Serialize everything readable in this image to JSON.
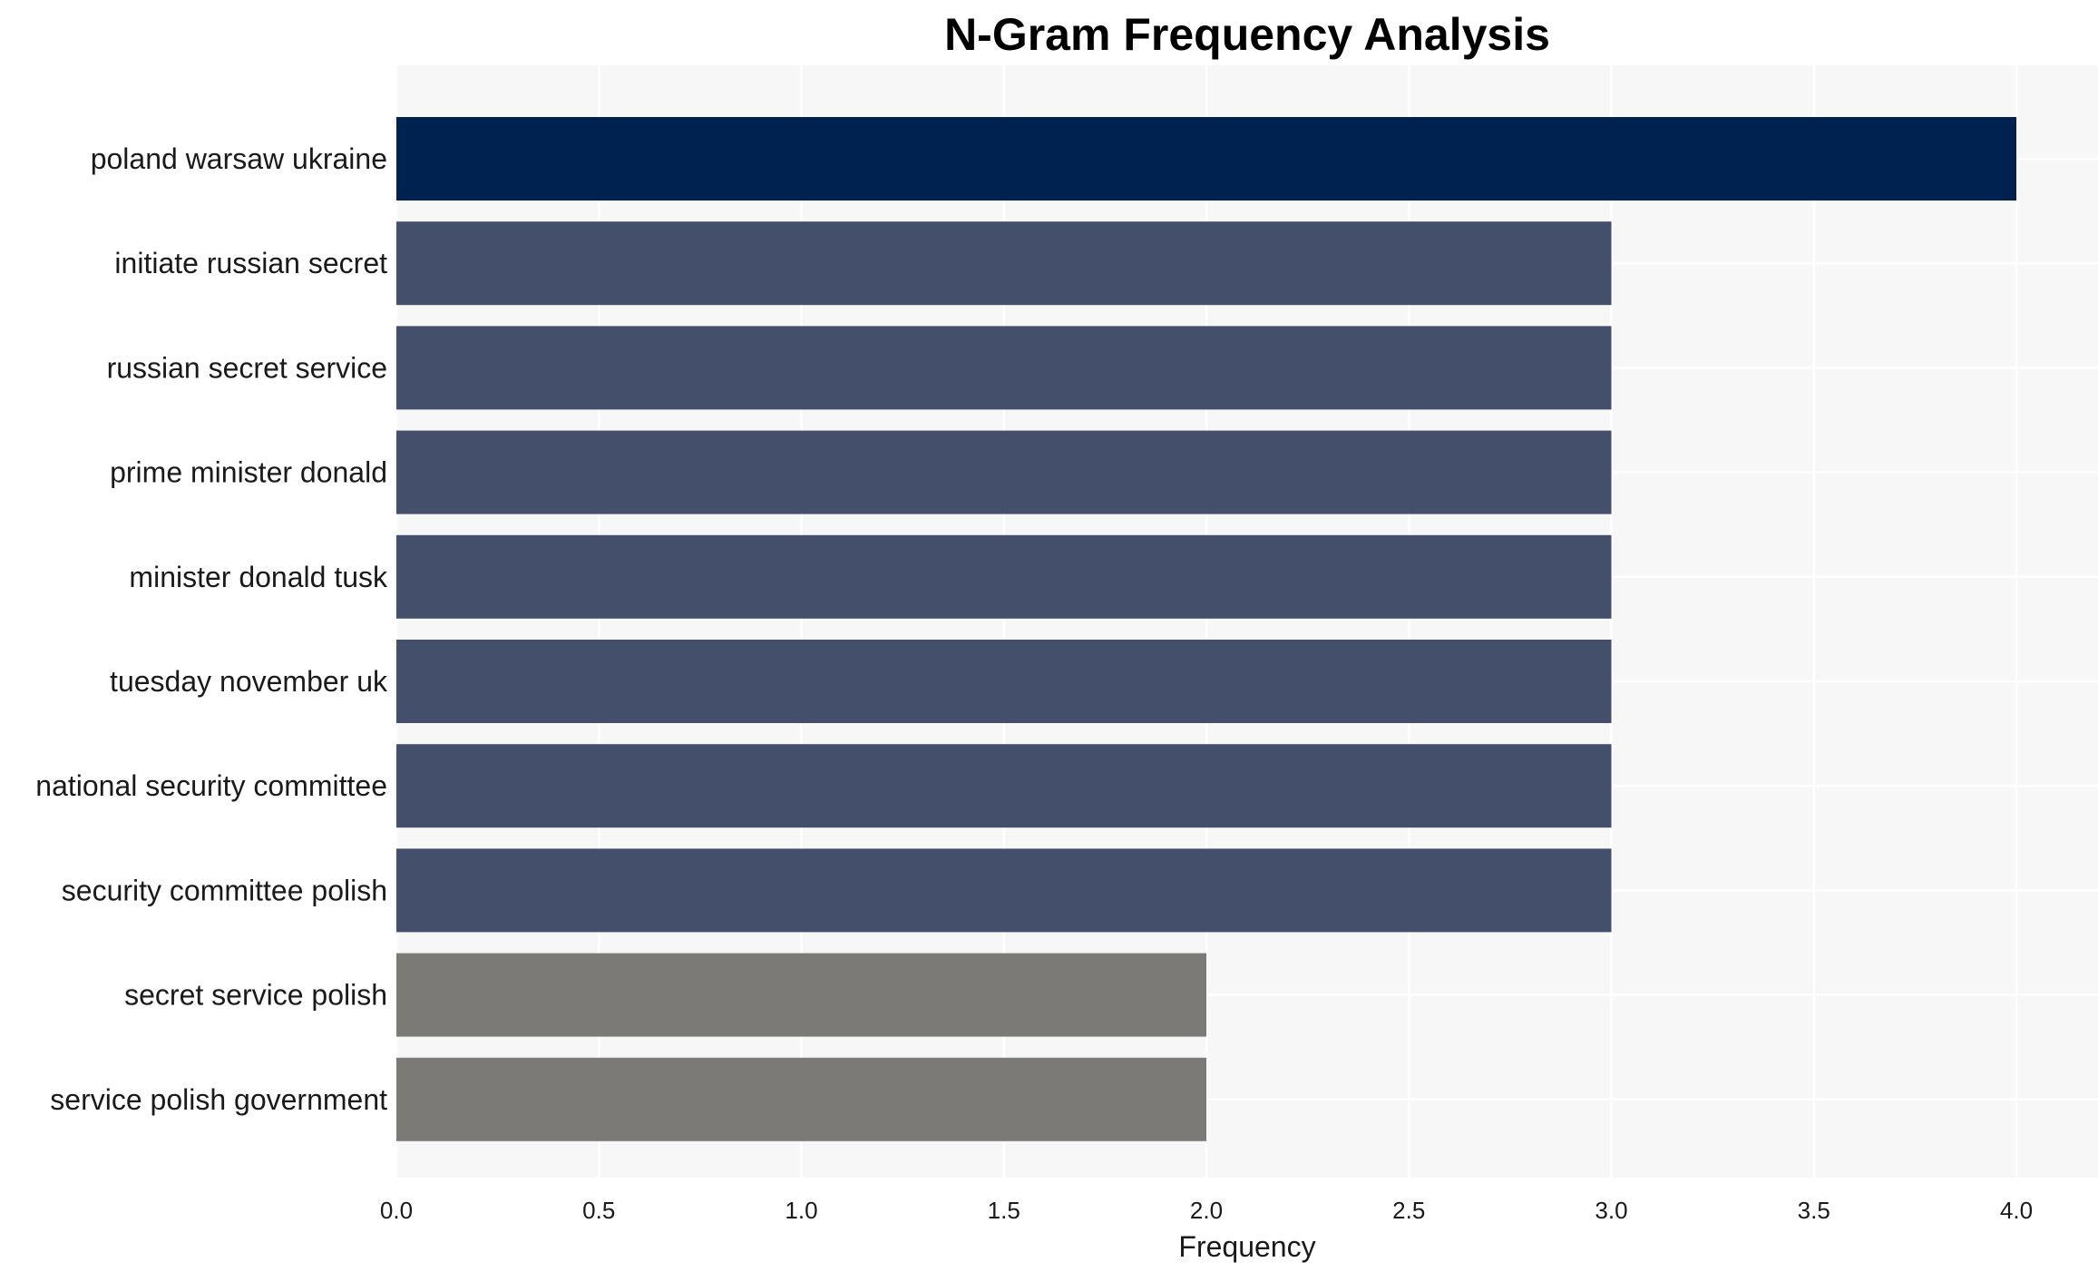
{
  "chart_data": {
    "type": "bar",
    "orientation": "horizontal",
    "title": "N-Gram Frequency Analysis",
    "xlabel": "Frequency",
    "ylabel": "",
    "xlim": [
      0,
      4.2
    ],
    "xticks": [
      "0.0",
      "0.5",
      "1.0",
      "1.5",
      "2.0",
      "2.5",
      "3.0",
      "3.5",
      "4.0"
    ],
    "grid": true,
    "categories": [
      "poland warsaw ukraine",
      "initiate russian secret",
      "russian secret service",
      "prime minister donald",
      "minister donald tusk",
      "tuesday november uk",
      "national security committee",
      "security committee polish",
      "secret service polish",
      "service polish government"
    ],
    "values": [
      4,
      3,
      3,
      3,
      3,
      3,
      3,
      3,
      2,
      2
    ],
    "colors": {
      "4": "#002251",
      "3": "#444f6c",
      "2": "#7b7a76"
    },
    "panel_background": "#f7f7f7",
    "grid_color": "#ffffff"
  }
}
